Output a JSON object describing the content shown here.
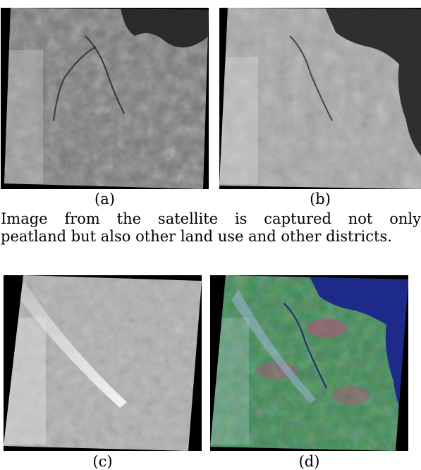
{
  "figures": [
    {
      "id": "a",
      "label": "(a)",
      "band": "grayscale band image",
      "color": "#9a9a9a"
    },
    {
      "id": "b",
      "label": "(b)",
      "band": "grayscale band image",
      "color": "#b4b4b4"
    },
    {
      "id": "c",
      "label": "(c)",
      "band": "grayscale band image with smoke plume",
      "color": "#bdbdbd"
    },
    {
      "id": "d",
      "label": "(d)",
      "band": "false color composite image",
      "color": "#3f8a55"
    }
  ],
  "paragraph": {
    "line1_words": [
      "Image",
      "from",
      "the",
      "satellite",
      "is",
      "captured",
      "not",
      "only"
    ],
    "line2": "peatland but also other land use and other districts."
  }
}
